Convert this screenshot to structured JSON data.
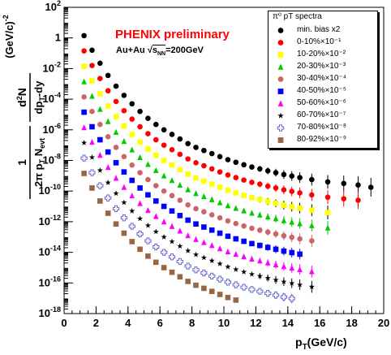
{
  "chart_data": {
    "type": "scatter",
    "title": "PHENIX preliminary",
    "subtitle_pre": "Au+Au ",
    "subtitle_sqrt": "s",
    "subtitle_sub": "NN",
    "subtitle_post": "=200GeV",
    "xlabel": "p",
    "xlabel_sub": "T",
    "xlabel_post": "(GeV/c)",
    "ylabel": "1/(2π pT Nevt) d²N/(dpT dy) (GeV/c)^-2",
    "xlim": [
      0,
      20
    ],
    "ylim_log10": [
      -18,
      2
    ],
    "log_y": true,
    "grid": false,
    "legend_position": "top-right",
    "legend_header": "π⁰ pT spectra",
    "x_ticks": [
      "0",
      "2",
      "4",
      "6",
      "8",
      "10",
      "12",
      "14",
      "16",
      "18",
      "20"
    ],
    "y_ticks": [
      {
        "base": "10",
        "exp": "2",
        "log": 2
      },
      {
        "base": "1",
        "exp": "",
        "log": 0
      },
      {
        "base": "10",
        "exp": "-2",
        "log": -2
      },
      {
        "base": "10",
        "exp": "-4",
        "log": -4
      },
      {
        "base": "10",
        "exp": "-6",
        "log": -6
      },
      {
        "base": "10",
        "exp": "-8",
        "log": -8
      },
      {
        "base": "10",
        "exp": "-10",
        "log": -10
      },
      {
        "base": "10",
        "exp": "-12",
        "log": -12
      },
      {
        "base": "10",
        "exp": "-14",
        "log": -14
      },
      {
        "base": "10",
        "exp": "-16",
        "log": -16
      },
      {
        "base": "10",
        "exp": "-18",
        "log": -18
      }
    ],
    "series": [
      {
        "name": "min. bias x2",
        "scale_text": "",
        "marker": "circle",
        "color": "#000000",
        "offset": 0,
        "xmax": 19.2
      },
      {
        "name": "0-10%",
        "scale_text": "×10⁻¹",
        "marker": "circle",
        "color": "#ff0000",
        "offset": -1,
        "xmax": 18.4
      },
      {
        "name": "10-20%",
        "scale_text": "×10⁻²",
        "marker": "square",
        "color": "#ffff00",
        "offset": -2,
        "xmax": 17.4
      },
      {
        "name": "20-30%",
        "scale_text": "×10⁻³",
        "marker": "triangle",
        "color": "#00cc00",
        "offset": -3,
        "xmax": 16.5
      },
      {
        "name": "30-40%",
        "scale_text": "×10⁻⁴",
        "marker": "circle",
        "color": "#cc6666",
        "offset": -4,
        "xmax": 15.5
      },
      {
        "name": "40-50%",
        "scale_text": "×10⁻⁵",
        "marker": "square",
        "color": "#0000ff",
        "offset": -5,
        "xmax": 15.4
      },
      {
        "name": "50-60%",
        "scale_text": "×10⁻⁶",
        "marker": "triangle",
        "color": "#ff00ff",
        "offset": -6,
        "xmax": 15.5
      },
      {
        "name": "60-70%",
        "scale_text": "×10⁻⁷",
        "marker": "star",
        "color": "#000000",
        "offset": -7,
        "xmax": 15.5
      },
      {
        "name": "70-80%",
        "scale_text": "×10⁻⁸",
        "marker": "opencross",
        "color": "#6666cc",
        "offset": -8,
        "xmax": 14.5
      },
      {
        "name": "80-92%",
        "scale_text": "×10⁻⁹",
        "marker": "square",
        "color": "#996644",
        "offset": -9,
        "xmax": 11.2
      }
    ],
    "base_curve": {
      "x": [
        1.25,
        1.75,
        2.25,
        2.75,
        3.25,
        3.75,
        4.25,
        4.75,
        5.25,
        5.75,
        6.25,
        6.75,
        7.25,
        7.75,
        8.25,
        8.75,
        9.25,
        9.75,
        10.25,
        10.75,
        11.25,
        11.75,
        12.25,
        12.75,
        13.25,
        13.75,
        14.25,
        14.75,
        15.5,
        16.5,
        17.5,
        18.4,
        19.2
      ],
      "log10_y": [
        0.15,
        -0.8,
        -1.65,
        -2.45,
        -3.15,
        -3.75,
        -4.3,
        -4.8,
        -5.25,
        -5.65,
        -6.0,
        -6.3,
        -6.6,
        -6.9,
        -7.15,
        -7.35,
        -7.55,
        -7.75,
        -7.95,
        -8.12,
        -8.28,
        -8.43,
        -8.55,
        -8.68,
        -8.8,
        -8.92,
        -9.02,
        -9.12,
        -9.25,
        -9.4,
        -9.5,
        -9.6,
        -9.75
      ]
    },
    "note": "Each series y = base_curve × 10^offset (log10 values relative to min. bias x2)."
  }
}
